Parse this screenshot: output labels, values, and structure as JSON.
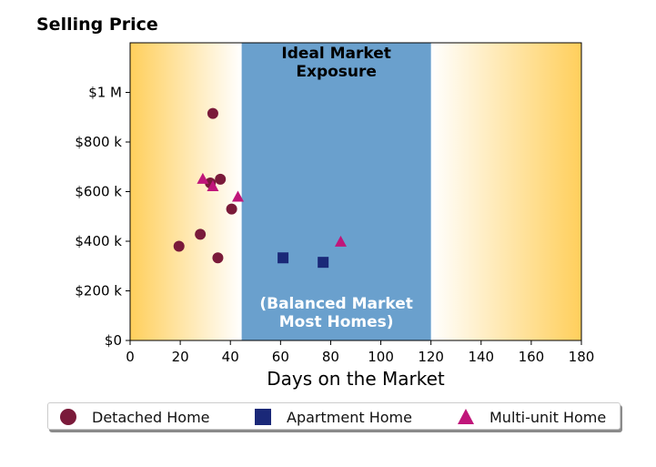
{
  "chart_data": {
    "type": "scatter",
    "title": "Selling Price",
    "xlabel": "Days on the Market",
    "ylabel": "",
    "xlim": [
      0,
      180
    ],
    "ylim": [
      0,
      1200000
    ],
    "x_ticks": [
      0,
      20,
      40,
      60,
      80,
      100,
      120,
      140,
      160,
      180
    ],
    "x_tick_labels": [
      "0",
      "20",
      "40",
      "60",
      "80",
      "100",
      "120",
      "140",
      "160",
      "180"
    ],
    "y_ticks": [
      0,
      200000,
      400000,
      600000,
      800000,
      1000000
    ],
    "y_tick_labels": [
      "$0",
      "$200 k",
      "$400 k",
      "$600 k",
      "$800 k",
      "$1 M"
    ],
    "grid": false,
    "legend_position": "bottom",
    "band": {
      "x_start": 44.5,
      "x_end": 120,
      "color": "#6aa0cd"
    },
    "band_top_label": [
      "Ideal Market",
      "Exposure"
    ],
    "band_bottom_label": [
      "(Balanced Market",
      "Most Homes)"
    ],
    "gradient_color": "#ffcf5c",
    "series": [
      {
        "name": "Detached Home",
        "marker": "circle",
        "color": "#7a1a3a",
        "points": [
          {
            "x": 19.5,
            "y": 380000
          },
          {
            "x": 28,
            "y": 428000
          },
          {
            "x": 32,
            "y": 635000
          },
          {
            "x": 33,
            "y": 915000
          },
          {
            "x": 35,
            "y": 333000
          },
          {
            "x": 36,
            "y": 650000
          },
          {
            "x": 40.5,
            "y": 530000
          }
        ]
      },
      {
        "name": "Apartment Home",
        "marker": "square",
        "color": "#1a2878",
        "points": [
          {
            "x": 61,
            "y": 333000
          },
          {
            "x": 77,
            "y": 315000
          }
        ]
      },
      {
        "name": "Multi-unit Home",
        "marker": "triangle",
        "color": "#c0167a",
        "points": [
          {
            "x": 29,
            "y": 650000
          },
          {
            "x": 33,
            "y": 620000
          },
          {
            "x": 43,
            "y": 578000
          },
          {
            "x": 84,
            "y": 397000
          }
        ]
      }
    ]
  }
}
